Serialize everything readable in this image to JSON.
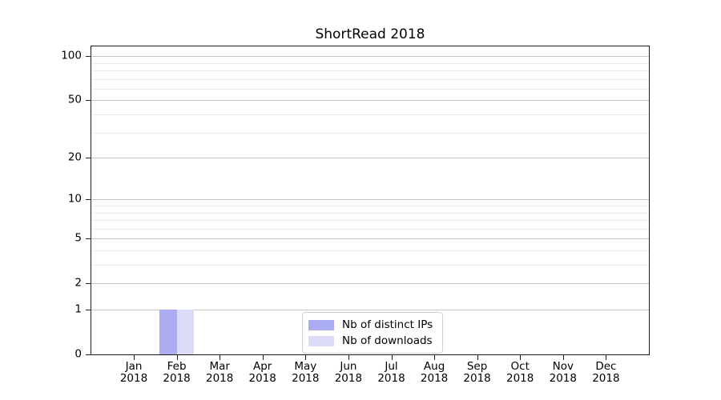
{
  "chart_data": {
    "type": "bar",
    "title": "ShortRead 2018",
    "categories": [
      {
        "month": "Jan",
        "year": "2018"
      },
      {
        "month": "Feb",
        "year": "2018"
      },
      {
        "month": "Mar",
        "year": "2018"
      },
      {
        "month": "Apr",
        "year": "2018"
      },
      {
        "month": "May",
        "year": "2018"
      },
      {
        "month": "Jun",
        "year": "2018"
      },
      {
        "month": "Jul",
        "year": "2018"
      },
      {
        "month": "Aug",
        "year": "2018"
      },
      {
        "month": "Sep",
        "year": "2018"
      },
      {
        "month": "Oct",
        "year": "2018"
      },
      {
        "month": "Nov",
        "year": "2018"
      },
      {
        "month": "Dec",
        "year": "2018"
      }
    ],
    "series": [
      {
        "name": "Nb of distinct IPs",
        "color": "#acacf3",
        "values": [
          0,
          1,
          0,
          0,
          0,
          0,
          0,
          0,
          0,
          0,
          0,
          0
        ]
      },
      {
        "name": "Nb of downloads",
        "color": "#dcdcf8",
        "values": [
          0,
          1,
          0,
          0,
          0,
          0,
          0,
          0,
          0,
          0,
          0,
          0
        ]
      }
    ],
    "y_axis": {
      "scale": "log1p",
      "major_ticks": [
        0,
        1,
        2,
        5,
        10,
        20,
        50,
        100
      ],
      "minor_ticks": [
        3,
        4,
        6,
        7,
        8,
        9,
        30,
        40,
        60,
        70,
        80,
        90
      ],
      "ylim": [
        0,
        118
      ]
    },
    "x_axis": {
      "label_lines": 2
    },
    "grid": "on",
    "legend": {
      "position": "lower center",
      "items": [
        "Nb of distinct IPs",
        "Nb of downloads"
      ]
    },
    "colors": {
      "spine": "#1a1a1a",
      "grid_major": "#c8c8c8",
      "grid_minor": "#ececec",
      "bar_distinct_ips": "#acacf3",
      "bar_downloads": "#dcdcf8"
    }
  }
}
